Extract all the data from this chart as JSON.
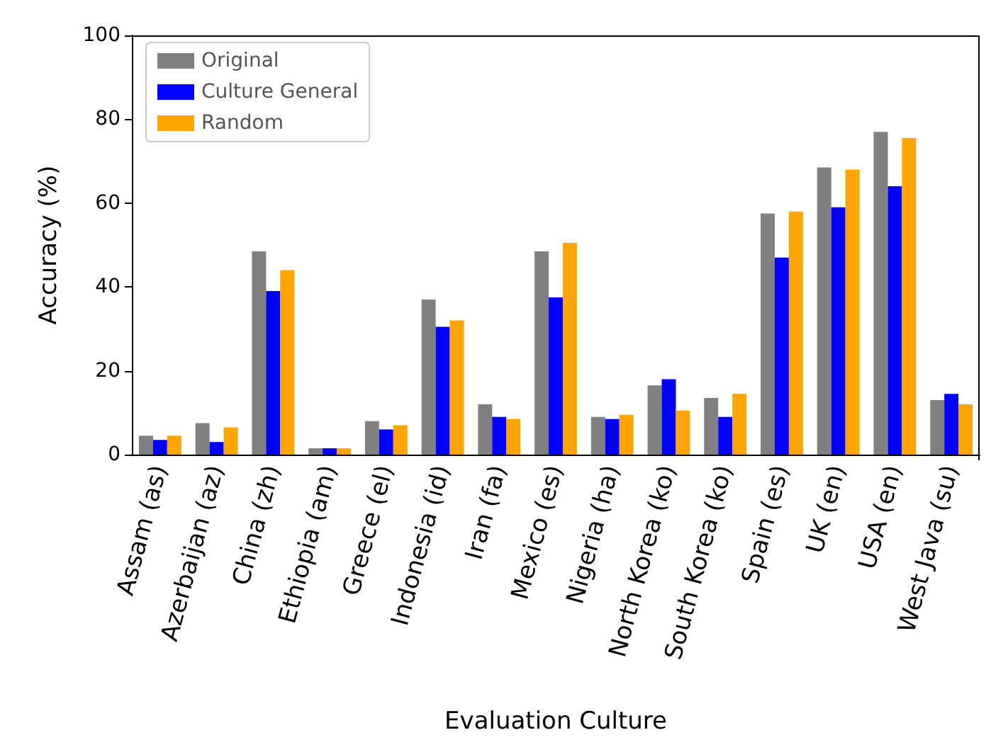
{
  "chart_data": {
    "type": "bar",
    "xlabel": "Evaluation Culture",
    "ylabel": "Accuracy (%)",
    "categories": [
      "Assam (as)",
      "Azerbaijan (az)",
      "China (zh)",
      "Ethiopia (am)",
      "Greece (el)",
      "Indonesia (id)",
      "Iran (fa)",
      "Mexico (es)",
      "Nigeria (ha)",
      "North Korea (ko)",
      "South Korea (ko)",
      "Spain (es)",
      "UK (en)",
      "USA (en)",
      "West Java (su)"
    ],
    "series": [
      {
        "name": "Original",
        "color": "#808080",
        "values": [
          4.5,
          7.5,
          48.5,
          1.5,
          8,
          37,
          12,
          48.5,
          9,
          16.5,
          13.5,
          57.5,
          68.5,
          77,
          13
        ]
      },
      {
        "name": "Culture General",
        "color": "#0000ff",
        "values": [
          3.5,
          3,
          39,
          1.5,
          6,
          30.5,
          9,
          37.5,
          8.5,
          18,
          9,
          47,
          59,
          64,
          14.5
        ]
      },
      {
        "name": "Random",
        "color": "#ffa500",
        "values": [
          4.5,
          6.5,
          44,
          1.5,
          7,
          32,
          8.5,
          50.5,
          9.5,
          10.5,
          14.5,
          58,
          68,
          75.5,
          12
        ]
      }
    ],
    "ylim": [
      0,
      100
    ],
    "yticks": [
      0,
      20,
      40,
      60,
      80,
      100
    ],
    "grid": false,
    "legend": "top left"
  }
}
